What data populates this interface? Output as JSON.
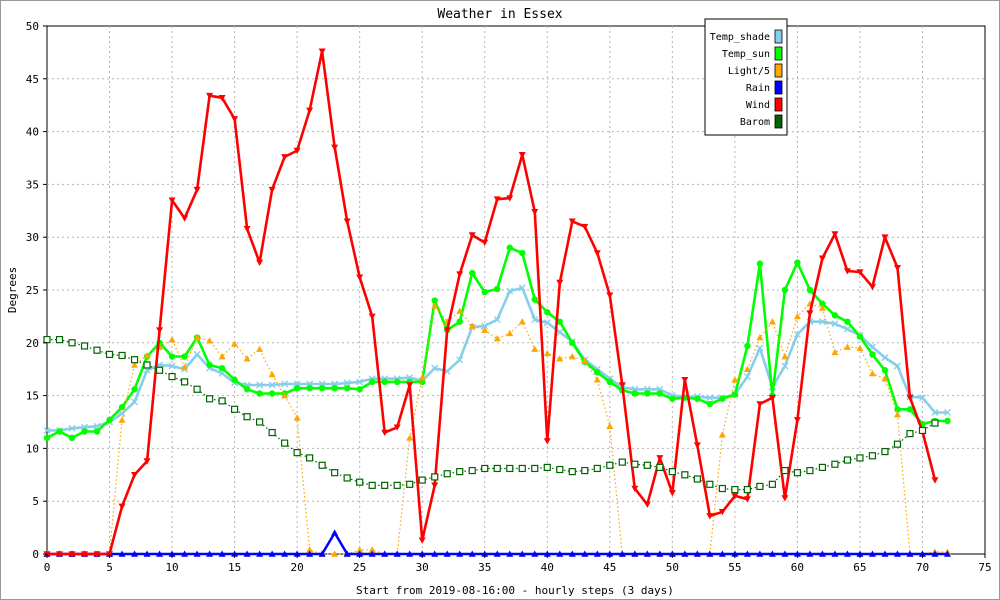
{
  "chart_data": {
    "type": "line",
    "title": "Weather in Essex",
    "xlabel": "Start from 2019-08-16:00 - hourly steps (3 days)",
    "ylabel": "Degrees",
    "xlim": [
      0,
      75
    ],
    "ylim": [
      0,
      50
    ],
    "xticks": [
      "0",
      "5",
      "10",
      "15",
      "20",
      "25",
      "30",
      "35",
      "40",
      "45",
      "50",
      "55",
      "60",
      "65",
      "70",
      "75"
    ],
    "yticks": [
      "0",
      "5",
      "10",
      "15",
      "20",
      "25",
      "30",
      "35",
      "40",
      "45",
      "50"
    ],
    "grid": true,
    "legend_position": "top-right",
    "series": [
      {
        "name": "Temp_shade",
        "color": "#87ceeb",
        "marker": "x",
        "line": "solid",
        "values": [
          11.7,
          11.7,
          11.9,
          12.0,
          12.1,
          12.5,
          13.3,
          14.4,
          17.4,
          17.9,
          17.8,
          17.5,
          18.9,
          17.6,
          17.1,
          16.2,
          16.0,
          16.0,
          16.0,
          16.1,
          16.1,
          16.1,
          16.1,
          16.1,
          16.2,
          16.3,
          16.6,
          16.6,
          16.6,
          16.7,
          16.4,
          17.6,
          17.3,
          18.4,
          21.5,
          21.6,
          22.2,
          24.9,
          25.2,
          22.2,
          21.9,
          21.0,
          20.1,
          18.4,
          17.5,
          16.6,
          15.8,
          15.6,
          15.6,
          15.6,
          15.0,
          14.9,
          14.9,
          14.8,
          14.8,
          15.1,
          16.8,
          19.5,
          15.8,
          17.8,
          20.8,
          22.0,
          22.0,
          21.8,
          21.3,
          20.7,
          19.6,
          18.6,
          17.8,
          14.9,
          14.8,
          13.4,
          13.4
        ]
      },
      {
        "name": "Temp_sun",
        "color": "#00ff00",
        "marker": "circle",
        "line": "solid",
        "values": [
          11.0,
          11.6,
          11.0,
          11.6,
          11.6,
          12.7,
          13.9,
          15.6,
          18.7,
          20.0,
          18.7,
          18.7,
          20.5,
          17.9,
          17.6,
          16.5,
          15.6,
          15.2,
          15.2,
          15.2,
          15.7,
          15.7,
          15.7,
          15.7,
          15.7,
          15.6,
          16.3,
          16.3,
          16.3,
          16.3,
          16.3,
          24.0,
          21.2,
          22.0,
          26.6,
          24.8,
          25.1,
          29.0,
          28.5,
          24.1,
          22.9,
          22.0,
          20.0,
          18.2,
          17.2,
          16.3,
          15.5,
          15.2,
          15.2,
          15.2,
          14.7,
          14.8,
          14.7,
          14.2,
          14.7,
          15.1,
          19.7,
          27.5,
          15.0,
          25.0,
          27.6,
          25.0,
          23.7,
          22.6,
          22.0,
          20.6,
          18.9,
          17.4,
          13.7,
          13.7,
          12.3,
          12.6,
          12.6
        ]
      },
      {
        "name": "Light/5",
        "color": "#ffa500",
        "marker": "triangle-up",
        "line": "dotted",
        "values": [
          0,
          0,
          0,
          0,
          0,
          0,
          12.7,
          17.9,
          18.8,
          19.6,
          20.3,
          17.7,
          20.5,
          20.2,
          18.7,
          19.9,
          18.5,
          19.4,
          17.0,
          15.0,
          12.9,
          0.4,
          0,
          0,
          0,
          0.4,
          0.4,
          0,
          0,
          11.0,
          16.7,
          23.5,
          22.0,
          23.0,
          21.6,
          21.2,
          20.4,
          20.9,
          22.0,
          19.4,
          19.0,
          18.5,
          18.7,
          18.3,
          16.5,
          12.1,
          0,
          0,
          0,
          0,
          0,
          0,
          0,
          0,
          11.3,
          16.5,
          17.5,
          20.5,
          22.0,
          18.7,
          22.5,
          23.7,
          23.3,
          19.1,
          19.6,
          19.5,
          17.1,
          16.6,
          13.2,
          0,
          0,
          0.2,
          0.2
        ]
      },
      {
        "name": "Rain",
        "color": "#0000ff",
        "marker": "triangle-up",
        "line": "solid",
        "values": [
          0,
          0,
          0,
          0,
          0,
          0,
          0,
          0,
          0,
          0,
          0,
          0,
          0,
          0,
          0,
          0,
          0,
          0,
          0,
          0,
          0,
          0,
          0,
          2.0,
          0,
          0,
          0,
          0,
          0,
          0,
          0,
          0,
          0,
          0,
          0,
          0,
          0,
          0,
          0,
          0,
          0,
          0,
          0,
          0,
          0,
          0,
          0,
          0,
          0,
          0,
          0,
          0,
          0,
          0,
          0,
          0,
          0,
          0,
          0,
          0,
          0,
          0,
          0,
          0,
          0,
          0,
          0,
          0,
          0,
          0,
          0,
          0,
          0
        ]
      },
      {
        "name": "Wind",
        "color": "#ff0000",
        "marker": "triangle-down",
        "line": "solid",
        "values": [
          0,
          0,
          0,
          0,
          0,
          0,
          4.5,
          7.5,
          8.8,
          21.2,
          33.5,
          31.8,
          34.5,
          43.4,
          43.2,
          41.2,
          30.8,
          27.6,
          34.5,
          37.6,
          38.2,
          42.0,
          47.6,
          38.5,
          31.5,
          26.2,
          22.5,
          11.5,
          12.0,
          16.0,
          1.3,
          6.5,
          21.2,
          26.5,
          30.2,
          29.5,
          33.6,
          33.7,
          37.8,
          32.4,
          10.7,
          25.7,
          31.5,
          31.0,
          28.5,
          24.5,
          16.0,
          6.2,
          4.7,
          9.1,
          5.8,
          16.5,
          10.3,
          3.6,
          4.0,
          5.5,
          5.2,
          14.2,
          14.8,
          5.3,
          12.7,
          22.8,
          28.0,
          30.3,
          26.8,
          26.7,
          25.3,
          30.0,
          27.1,
          14.8,
          11.6,
          7.0
        ]
      },
      {
        "name": "Barom",
        "color": "#006400",
        "marker": "square",
        "line": "dotted",
        "values": [
          20.3,
          20.3,
          20.0,
          19.7,
          19.3,
          18.9,
          18.8,
          18.4,
          17.9,
          17.4,
          16.8,
          16.3,
          15.6,
          14.7,
          14.5,
          13.7,
          13.0,
          12.5,
          11.5,
          10.5,
          9.6,
          9.1,
          8.4,
          7.7,
          7.2,
          6.8,
          6.5,
          6.5,
          6.5,
          6.6,
          7.0,
          7.3,
          7.6,
          7.8,
          7.9,
          8.1,
          8.1,
          8.1,
          8.1,
          8.1,
          8.2,
          8.0,
          7.8,
          7.9,
          8.1,
          8.4,
          8.7,
          8.5,
          8.4,
          8.2,
          7.8,
          7.5,
          7.1,
          6.6,
          6.2,
          6.1,
          6.1,
          6.4,
          6.6,
          7.9,
          7.7,
          7.9,
          8.2,
          8.5,
          8.9,
          9.1,
          9.3,
          9.7,
          10.4,
          11.4,
          11.7,
          12.4
        ]
      }
    ]
  }
}
